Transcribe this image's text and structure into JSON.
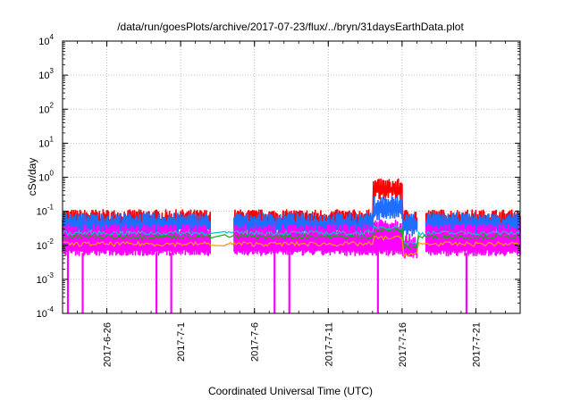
{
  "chart_data": {
    "type": "line",
    "title": "/data/run/goesPlots/archive/2017-07-23/flux/../bryn/31daysEarthData.plot",
    "xlabel": "Coordinated Universal Time (UTC)",
    "ylabel": "cSv/day",
    "y_scale": "log",
    "ylim": [
      0.0001,
      10000
    ],
    "xlim": [
      "2017-06-23",
      "2017-07-24"
    ],
    "grid": true,
    "y_ticks": [
      {
        "value": 0.0001,
        "base": "10",
        "exp": "-4"
      },
      {
        "value": 0.001,
        "base": "10",
        "exp": "-3"
      },
      {
        "value": 0.01,
        "base": "10",
        "exp": "-2"
      },
      {
        "value": 0.1,
        "base": "10",
        "exp": "-1"
      },
      {
        "value": 1,
        "base": "10",
        "exp": "0"
      },
      {
        "value": 10,
        "base": "10",
        "exp": "1"
      },
      {
        "value": 100,
        "base": "10",
        "exp": "2"
      },
      {
        "value": 1000,
        "base": "10",
        "exp": "3"
      },
      {
        "value": 10000,
        "base": "10",
        "exp": "4"
      }
    ],
    "x_ticks": [
      {
        "date": "2017-06-26",
        "label": "2017-6-26"
      },
      {
        "date": "2017-07-01",
        "label": "2017-7-1"
      },
      {
        "date": "2017-07-06",
        "label": "2017-7-6"
      },
      {
        "date": "2017-07-11",
        "label": "2017-7-11"
      },
      {
        "date": "2017-07-16",
        "label": "2017-7-16"
      },
      {
        "date": "2017-07-21",
        "label": "2017-7-21"
      }
    ],
    "series_colors": [
      "#ff0000",
      "#1e6eff",
      "#00c8c8",
      "#00b400",
      "#ff00ff",
      "#ff9b00"
    ],
    "data_gaps": [
      {
        "from": "2017-07-03",
        "to": "2017-07-04"
      },
      {
        "from": "2017-07-17",
        "to": "2017-07-17"
      }
    ],
    "dropouts": [
      "2017-06-23",
      "2017-06-24",
      "2017-06-29",
      "2017-06-30",
      "2017-07-07",
      "2017-07-08",
      "2017-07-14",
      "2017-07-20"
    ],
    "levels": [
      {
        "from": "2017-06-23",
        "to": "2017-07-03",
        "red_peak": 0.1,
        "blue_peak": 0.08,
        "green": 0.02,
        "magenta_low": 0.006
      },
      {
        "from": "2017-07-04",
        "to": "2017-07-14",
        "red_peak": 0.1,
        "blue_peak": 0.08,
        "green": 0.02,
        "magenta_low": 0.006
      },
      {
        "from": "2017-07-14",
        "to": "2017-07-16",
        "red_peak": 0.8,
        "blue_peak": 0.25,
        "green": 0.03,
        "magenta_low": 0.006
      },
      {
        "from": "2017-07-16",
        "to": "2017-07-17",
        "red_peak": 0.1,
        "blue_peak": 0.08,
        "green": 0.01,
        "magenta_low": 0.005
      },
      {
        "from": "2017-07-17",
        "to": "2017-07-24",
        "red_peak": 0.1,
        "blue_peak": 0.08,
        "green": 0.02,
        "magenta_low": 0.006
      }
    ]
  }
}
